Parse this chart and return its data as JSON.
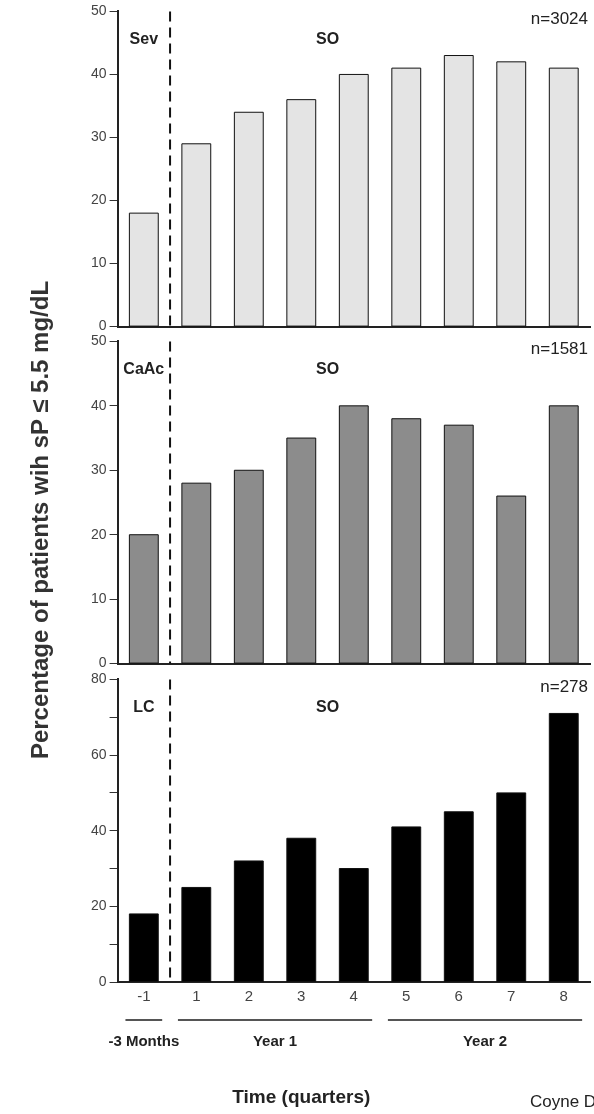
{
  "chart_data": [
    {
      "type": "bar",
      "categories": [
        "-1",
        "1",
        "2",
        "3",
        "4",
        "5",
        "6",
        "7",
        "8"
      ],
      "values": [
        18,
        29,
        34,
        36,
        40,
        41,
        43,
        42,
        41
      ],
      "color": "#e4e4e4",
      "ylim": [
        0,
        50
      ],
      "yticks": [
        0,
        10,
        20,
        30,
        40,
        50
      ],
      "grid": false,
      "tick_labels": "y",
      "annotations": [
        "n=3024",
        "Sev",
        "SO"
      ]
    },
    {
      "type": "bar",
      "categories": [
        "-1",
        "1",
        "2",
        "3",
        "4",
        "5",
        "6",
        "7",
        "8"
      ],
      "values": [
        20,
        28,
        30,
        35,
        40,
        38,
        37,
        26,
        40
      ],
      "color": "#8c8c8c",
      "ylim": [
        0,
        50
      ],
      "yticks": [
        0,
        10,
        20,
        30,
        40,
        50
      ],
      "grid": false,
      "tick_labels": "y",
      "ylabel": "Percentage of patients wih sP ≤ 5.5 mg/dL",
      "annotations": [
        "n=1581",
        "CaAc",
        "SO"
      ]
    },
    {
      "type": "bar",
      "categories": [
        "-1",
        "1",
        "2",
        "3",
        "4",
        "5",
        "6",
        "7",
        "8"
      ],
      "values": [
        18,
        25,
        32,
        38,
        30,
        41,
        45,
        50,
        71
      ],
      "color": "#000000",
      "ylim": [
        0,
        80
      ],
      "yticks": [
        0,
        {
          "value": 10,
          "label": null
        },
        20,
        {
          "value": 30,
          "label": null
        },
        40,
        {
          "value": 50,
          "label": null
        },
        60,
        {
          "value": 70,
          "label": null
        },
        80
      ],
      "grid": false,
      "xlabel": "Time (quarters)",
      "annotations": [
        "n=278",
        "LC",
        "SO",
        "-3 Months",
        "Year 1",
        "Year 2",
        "Coyne D"
      ]
    }
  ]
}
